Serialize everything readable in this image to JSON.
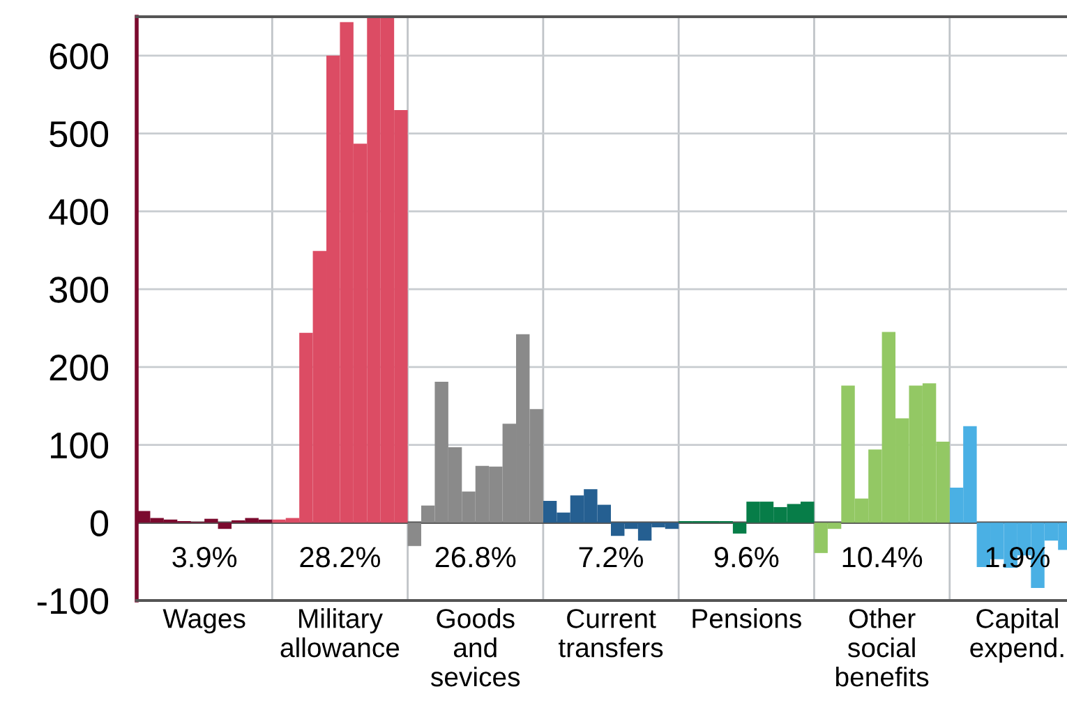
{
  "chart_data": {
    "type": "bar",
    "categories": [
      "Wages",
      "Military\nallowance",
      "Goods\nand\nsevices",
      "Current\ntransfers",
      "Pensions",
      "Other\nsocial\nbenefits",
      "Capital\nexpend."
    ],
    "series": [
      {
        "colors": [
          "#7b0a2e",
          "#dc4c64",
          "#8a8a8a",
          "#255f91",
          "#077d48",
          "#93c864",
          "#4ab0e4"
        ],
        "values": [
          15,
          4,
          -30,
          28,
          2,
          -39,
          45
        ]
      },
      {
        "colors": [
          "#7b0a2e",
          "#dc4c64",
          "#8a8a8a",
          "#255f91",
          "#077d48",
          "#93c864",
          "#4ab0e4"
        ],
        "values": [
          6,
          6,
          22,
          13,
          2,
          -8,
          124
        ]
      },
      {
        "colors": [
          "#7b0a2e",
          "#dc4c64",
          "#8a8a8a",
          "#255f91",
          "#077d48",
          "#93c864",
          "#4ab0e4"
        ],
        "values": [
          4,
          244,
          181,
          35,
          2,
          176,
          -57
        ]
      },
      {
        "colors": [
          "#7b0a2e",
          "#dc4c64",
          "#8a8a8a",
          "#255f91",
          "#077d48",
          "#93c864",
          "#4ab0e4"
        ],
        "values": [
          2,
          349,
          97,
          43,
          2,
          31,
          -47
        ]
      },
      {
        "colors": [
          "#7b0a2e",
          "#dc4c64",
          "#8a8a8a",
          "#255f91",
          "#077d48",
          "#93c864",
          "#4ab0e4"
        ],
        "values": [
          1,
          600,
          40,
          23,
          -14,
          94,
          -58
        ]
      },
      {
        "colors": [
          "#7b0a2e",
          "#dc4c64",
          "#8a8a8a",
          "#255f91",
          "#077d48",
          "#93c864",
          "#4ab0e4"
        ],
        "values": [
          5,
          643,
          73,
          -17,
          27,
          245,
          -42
        ]
      },
      {
        "colors": [
          "#7b0a2e",
          "#dc4c64",
          "#8a8a8a",
          "#255f91",
          "#077d48",
          "#93c864",
          "#4ab0e4"
        ],
        "values": [
          -8,
          487,
          72,
          -8,
          27,
          134,
          -84
        ]
      },
      {
        "colors": [
          "#7b0a2e",
          "#dc4c64",
          "#8a8a8a",
          "#255f91",
          "#077d48",
          "#93c864",
          "#4ab0e4"
        ],
        "values": [
          3,
          650,
          127,
          -23,
          20,
          176,
          -23
        ]
      },
      {
        "colors": [
          "#7b0a2e",
          "#dc4c64",
          "#8a8a8a",
          "#255f91",
          "#077d48",
          "#93c864",
          "#4ab0e4"
        ],
        "values": [
          6,
          650,
          242,
          -6,
          24,
          179,
          -35
        ]
      },
      {
        "colors": [
          "#7b0a2e",
          "#dc4c64",
          "#8a8a8a",
          "#255f91",
          "#077d48",
          "#93c864",
          "#4ab0e4"
        ],
        "values": [
          4,
          530,
          146,
          -8,
          27,
          104,
          null
        ]
      }
    ],
    "ylim": [
      -100,
      650
    ],
    "yticks": [
      -100,
      0,
      100,
      200,
      300,
      400,
      500,
      600
    ],
    "ref_lines": [
      {
        "axis": "y",
        "value": 0,
        "color": "#555555"
      }
    ],
    "annotations": [
      "3.9%",
      "28.2%",
      "26.8%",
      "7.2%",
      "9.6%",
      "10.4%",
      "1.9%"
    ],
    "grid": true,
    "legend": false
  }
}
